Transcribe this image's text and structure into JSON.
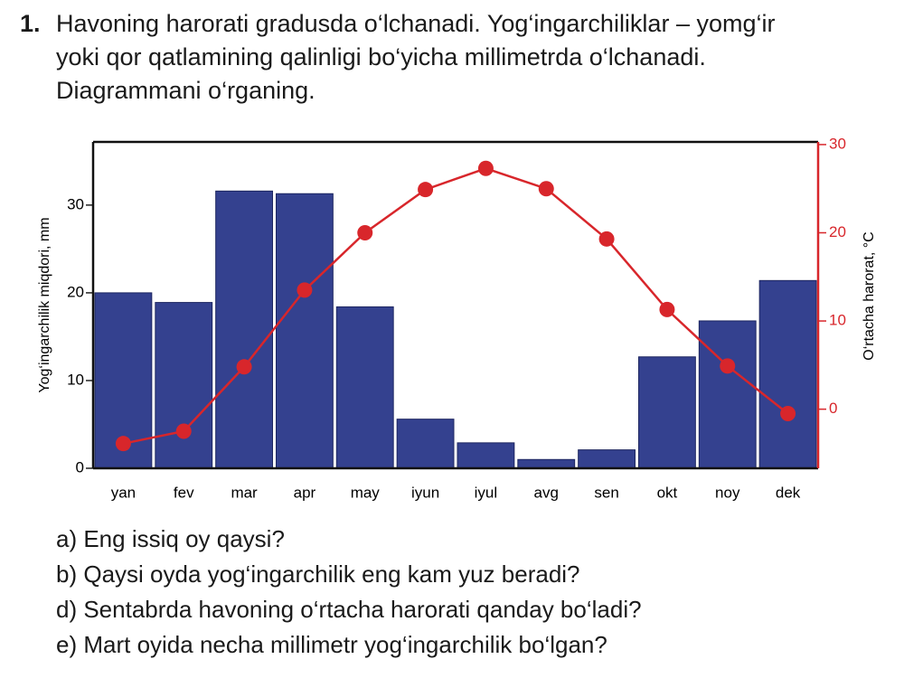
{
  "question_number": "1.",
  "question": "Havoning harorati gradusda o‘lchanadi. Yog‘ingarchiliklar – yomg‘ir yoki qor qatlamining qalinligi bo‘yicha millimetrda o‘lchanadi. Diagrammani o‘rganing.",
  "subquestions": [
    "a) Eng issiq oy qaysi?",
    "b) Qaysi oyda yog‘ingarchilik eng kam yuz beradi?",
    "d) Sentabrda havoning o‘rtacha harorati qanday bo‘ladi?",
    "e) Mart oyida necha millimetr yog‘ingarchilik bo‘lgan?"
  ],
  "chart_data": {
    "type": "combo",
    "y_label": "Yog‘ingarchilik miqdori, mm",
    "y2_label": "O‘rtacha harorat, °C",
    "categories": [
      "yan",
      "fev",
      "mar",
      "apr",
      "may",
      "iyun",
      "iyul",
      "avg",
      "sen",
      "okt",
      "noy",
      "dek"
    ],
    "series": [
      {
        "type": "bar",
        "color": "#34418f",
        "values": [
          20.0,
          18.9,
          31.6,
          31.3,
          18.4,
          5.6,
          2.9,
          1.0,
          2.1,
          12.7,
          16.8,
          21.4
        ]
      },
      {
        "type": "line",
        "axis": "y2",
        "color": "#d8262b",
        "values": [
          -3.9,
          -2.5,
          4.8,
          13.5,
          20.0,
          24.9,
          27.3,
          25.0,
          19.3,
          11.3,
          4.9,
          -0.5
        ]
      }
    ],
    "ylim": [
      0,
      37.2
    ],
    "yticks": [
      0,
      10,
      20,
      30
    ],
    "y2lim": [
      -6.7,
      30.3
    ],
    "y2ticks": [
      0,
      10,
      20,
      30
    ]
  }
}
